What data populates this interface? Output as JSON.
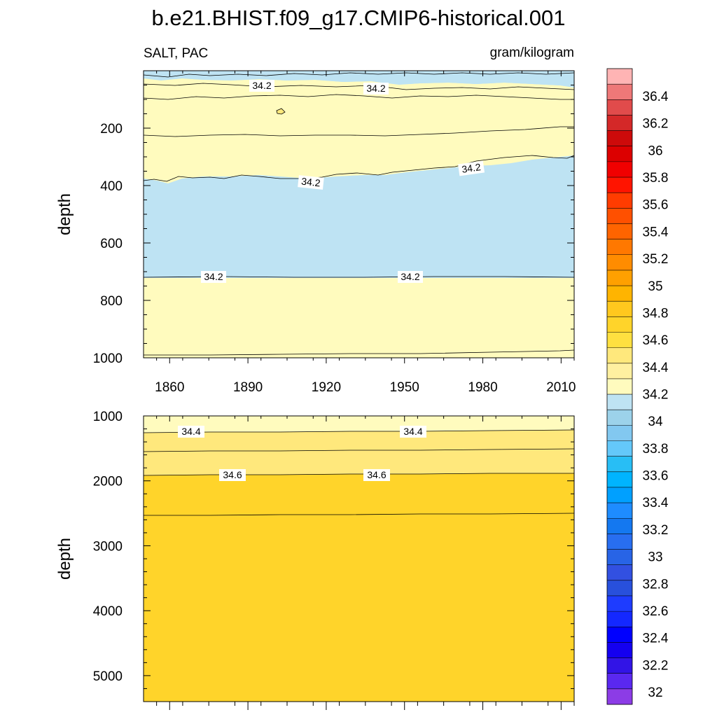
{
  "title": "b.e21.BHIST.f09_g17.CMIP6-historical.001",
  "left_string": "SALT, PAC",
  "right_string": "gram/kilogram",
  "colors": {
    "c34_0": "#9cd2ea",
    "c34_2": "#bee3f3",
    "c34_4": "#fffbbe",
    "c34_6": "#ffe87c",
    "c34_8": "#ffd42a"
  },
  "chart_data": [
    {
      "type": "heatmap",
      "panel": "upper",
      "variable": "SALT",
      "region": "PAC",
      "units": "gram/kilogram",
      "xlabel": "",
      "ylabel": "depth",
      "xlim": [
        1850,
        2015
      ],
      "ylim": [
        1000,
        0
      ],
      "x_ticks": [
        1860,
        1890,
        1920,
        1950,
        1980,
        2010
      ],
      "y_ticks": [
        200,
        400,
        600,
        800,
        1000
      ],
      "contour_levels": [
        34.0,
        34.2,
        34.4
      ],
      "bands": [
        {
          "value_range": "34.0-34.2",
          "depth_top": 0,
          "depth_bottom": 25
        },
        {
          "value_range": "34.2-34.4",
          "depth_top": 25,
          "depth_bottom": 380
        },
        {
          "value_range": "34.0-34.2",
          "depth_top": 380,
          "depth_bottom": 720
        },
        {
          "value_range": "34.2-34.4",
          "depth_top": 720,
          "depth_bottom": 1000
        }
      ],
      "contour_labels": [
        {
          "text": "34.2",
          "x": 1883,
          "depth": 20
        },
        {
          "text": "34.2",
          "x": 1935,
          "depth": 25
        },
        {
          "text": "34.2",
          "x": 1912,
          "depth": 375
        },
        {
          "text": "34.2",
          "x": 1975,
          "depth": 335
        },
        {
          "text": "34.2",
          "x": 1876,
          "depth": 715
        },
        {
          "text": "34.2",
          "x": 1949,
          "depth": 715
        }
      ]
    },
    {
      "type": "heatmap",
      "panel": "lower",
      "variable": "SALT",
      "region": "PAC",
      "units": "gram/kilogram",
      "xlabel": "",
      "ylabel": "depth",
      "xlim": [
        1850,
        2015
      ],
      "ylim": [
        5400,
        1000
      ],
      "y_ticks": [
        1000,
        2000,
        3000,
        4000,
        5000
      ],
      "contour_levels": [
        34.4,
        34.6,
        34.8
      ],
      "bands": [
        {
          "value_range": "34.2-34.4",
          "depth_top": 1000,
          "depth_bottom": 1230
        },
        {
          "value_range": "34.4-34.6",
          "depth_top": 1230,
          "depth_bottom": 1900
        },
        {
          "value_range": "34.6-34.8",
          "depth_top": 1900,
          "depth_bottom": 5400
        }
      ],
      "contour_labels": [
        {
          "text": "34.4",
          "x": 1865,
          "depth": 1240
        },
        {
          "text": "34.4",
          "x": 1950,
          "depth": 1240
        },
        {
          "text": "34.6",
          "x": 1880,
          "depth": 1900
        },
        {
          "text": "34.6",
          "x": 1937,
          "depth": 1900
        }
      ]
    }
  ],
  "colorbar": {
    "labels": [
      "36.4",
      "36.2",
      "36",
      "35.8",
      "35.6",
      "35.4",
      "35.2",
      "35",
      "34.8",
      "34.6",
      "34.4",
      "34.2",
      "34",
      "33.8",
      "33.6",
      "33.4",
      "33.2",
      "33",
      "32.8",
      "32.6",
      "32.4",
      "32.2",
      "32"
    ],
    "colors": [
      "#ffb4b4",
      "#ee7878",
      "#e14b4b",
      "#d42828",
      "#cd0a0a",
      "#dc0000",
      "#f00000",
      "#ff1400",
      "#ff3c00",
      "#ff5000",
      "#ff6400",
      "#ff7800",
      "#ff8c00",
      "#ffa000",
      "#ffb400",
      "#ffc81e",
      "#ffd42a",
      "#ffe040",
      "#ffe87c",
      "#fff0a0",
      "#fffbbe",
      "#bee3f3",
      "#9cd2ea",
      "#82c8f0",
      "#64c8fa",
      "#28bef5",
      "#00b4ff",
      "#00a0ff",
      "#1e8cff",
      "#1478f0",
      "#286ef0",
      "#2864e6",
      "#3250e1",
      "#2850dc",
      "#1e3cff",
      "#1428ff",
      "#0000ff",
      "#1400f0",
      "#3214e6",
      "#5a28f0",
      "#8c3ce6"
    ]
  }
}
